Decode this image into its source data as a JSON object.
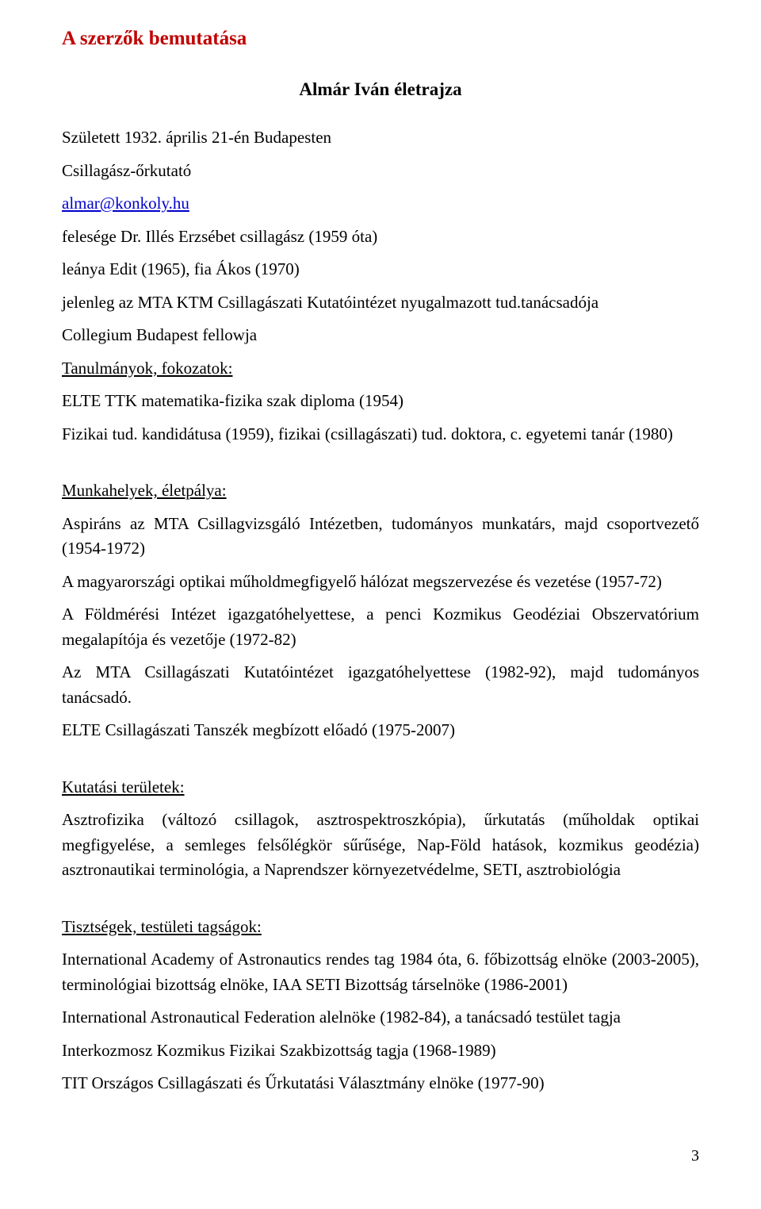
{
  "doc": {
    "main_title": "A szerzők bemutatása",
    "sub_title": "Almár Iván életrajza",
    "birth": "Született 1932. április 21-én Budapesten",
    "role": "Csillagász-őrkutató",
    "email": "almar@konkoly.hu",
    "spouse": "felesége Dr. Illés Erzsébet csillagász (1959 óta)",
    "children": "leánya Edit (1965), fia Ákos (1970)",
    "position": "jelenleg az MTA KTM Csillagászati Kutatóintézet nyugalmazott tud.tanácsadója",
    "fellow": "Collegium Budapest fellowja",
    "studies_heading": "Tanulmányok, fokozatok:",
    "diploma": "ELTE TTK matematika-fizika szak diploma (1954)",
    "degrees": "Fizikai tud. kandidátusa (1959), fizikai (csillagászati) tud. doktora, c. egyetemi tanár (1980)",
    "career_heading": "Munkahelyek, életpálya:",
    "career1": "Aspiráns az MTA Csillagvizsgáló Intézetben, tudományos munkatárs, majd csoportvezető (1954-1972)",
    "career2": "A magyarországi optikai műholdmegfigyelő hálózat megszervezése és vezetése (1957-72)",
    "career3": "A Földmérési Intézet igazgatóhelyettese, a penci Kozmikus Geodéziai Obszervatórium megalapítója és vezetője (1972-82)",
    "career4": "Az MTA Csillagászati Kutatóintézet igazgatóhelyettese (1982-92), majd tudományos tanácsadó.",
    "career5": "ELTE Csillagászati Tanszék megbízott előadó (1975-2007)",
    "research_heading": "Kutatási területek:",
    "research": "Asztrofizika (változó csillagok, asztrospektroszkópia), űrkutatás (műholdak optikai megfigyelése, a semleges felsőlégkör sűrűsége, Nap-Föld hatások, kozmikus geodézia) asztronautikai terminológia, a Naprendszer környezetvédelme, SETI, asztrobiológia",
    "memberships_heading": "Tisztségek, testületi tagságok:",
    "mem1": "International Academy of Astronautics rendes tag 1984 óta,  6. főbizottság elnöke (2003-2005),  terminológiai bizottság elnöke, IAA SETI Bizottság társelnöke (1986-2001)",
    "mem2": "International Astronautical Federation alelnöke (1982-84), a tanácsadó testület tagja",
    "mem3": "Interkozmosz Kozmikus Fizikai Szakbizottság tagja (1968-1989)",
    "mem4": "TIT  Országos Csillagászati és Űrkutatási Választmány elnöke (1977-90)",
    "page_number": "3"
  }
}
